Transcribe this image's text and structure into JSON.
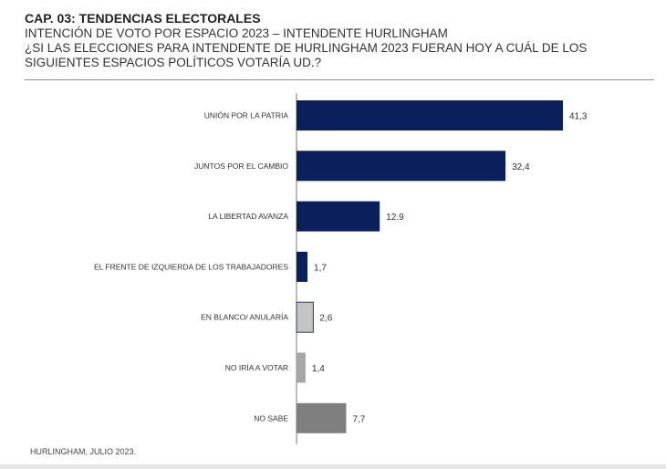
{
  "header": {
    "cap": "CAP. 03: TENDENCIAS ELECTORALES",
    "line1": "INTENCIÓN DE VOTO POR ESPACIO 2023 – INTENDENTE HURLINGHAM",
    "line2": "¿SI LAS ELECCIONES PARA INTENDENTE DE HURLINGHAM 2023 FUERAN HOY A CUÁL DE LOS",
    "line3": "SIGUIENTES ESPACIOS POLÍTICOS VOTARÍA UD.?"
  },
  "footer": {
    "source": "HURLINGHAM, JULIO 2023."
  },
  "chart_data": {
    "type": "bar",
    "orientation": "horizontal",
    "categories": [
      "UNIÓN POR LA PATRIA",
      "JUNTOS POR EL CAMBIO",
      "LA LIBERTAD AVANZA",
      "EL FRENTE DE IZQUIERDA DE LOS TRABAJADORES",
      "EN BLANCO/ ANULARÍA",
      "NO IRÍA A VOTAR",
      "NO SABE"
    ],
    "values": [
      41.3,
      32.4,
      12.9,
      1.7,
      2.6,
      1.4,
      7.7
    ],
    "value_labels": [
      "41,3",
      "32,4",
      "12.9",
      "1,7",
      "2,6",
      "1,4",
      "7,7"
    ],
    "colors": [
      "#0b1f5c",
      "#0b1f5c",
      "#0b1f5c",
      "#0b1f5c",
      "#c4c4c4",
      "#a6a6a6",
      "#7f7f7f"
    ],
    "grid": false,
    "legend": "none"
  }
}
